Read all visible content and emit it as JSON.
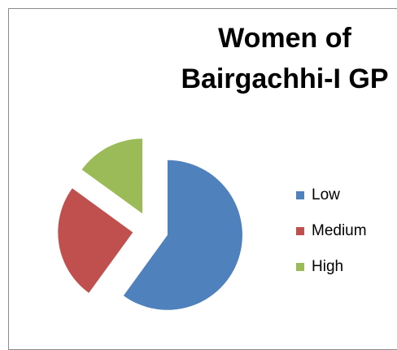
{
  "chart_data": {
    "type": "pie",
    "title": "Women of Bairgachhi-I GP",
    "categories": [
      "Low",
      "Medium",
      "High"
    ],
    "values": [
      60,
      25,
      15
    ],
    "colors": [
      "#4f81bd",
      "#c0504d",
      "#9bbb59"
    ],
    "legend": "right"
  }
}
